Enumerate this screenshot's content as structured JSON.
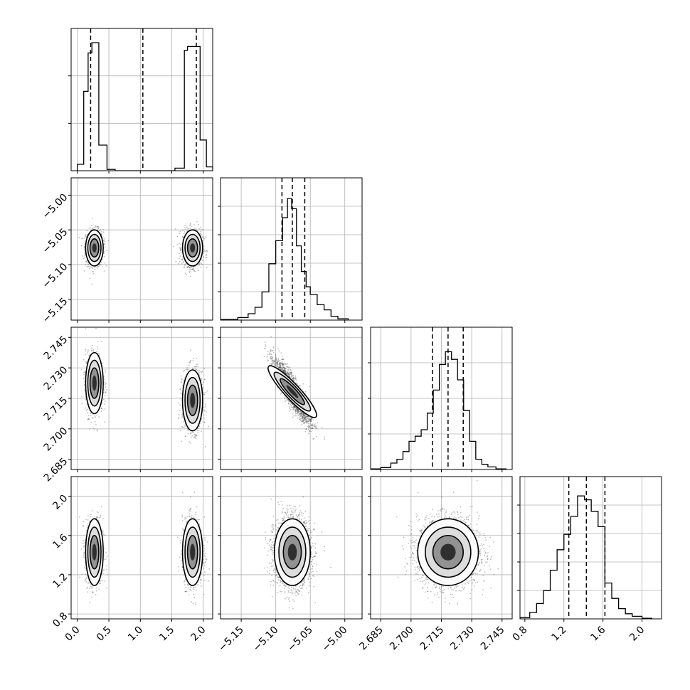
{
  "chart_data": {
    "type": "corner",
    "grid": true,
    "parameters": [
      {
        "range": [
          -0.1,
          2.15
        ],
        "ticks": [
          "0.0",
          "0.5",
          "1.0",
          "1.5",
          "2.0"
        ],
        "tick_values": [
          0,
          0.5,
          1.0,
          1.5,
          2.0
        ],
        "quantiles": [
          0.21,
          1.04,
          1.89
        ],
        "histogram": {
          "bins": [
            [
              0.0,
              0.1,
              0.05
            ],
            [
              0.1,
              0.17,
              0.62
            ],
            [
              0.17,
              0.23,
              0.92
            ],
            [
              0.23,
              0.34,
              1.0
            ],
            [
              0.34,
              0.47,
              0.2
            ],
            [
              0.47,
              0.6,
              0.01
            ],
            [
              1.55,
              1.7,
              0.02
            ],
            [
              1.7,
              1.75,
              0.94
            ],
            [
              1.75,
              1.95,
              0.97
            ],
            [
              1.95,
              2.05,
              0.24
            ],
            [
              2.05,
              2.15,
              0.03
            ]
          ],
          "y_ticks": [
            0.0,
            0.5,
            1.0
          ]
        },
        "blobs": [
          {
            "cx": 0.27,
            "sx": 0.07,
            "n": 900
          },
          {
            "cx": 1.83,
            "sx": 0.08,
            "n": 1000
          }
        ]
      },
      {
        "range": [
          -5.18,
          -4.975
        ],
        "ticks": [
          "-5.15",
          "-5.10",
          "-5.05",
          "-5.00"
        ],
        "tick_values": [
          -5.15,
          -5.1,
          -5.05,
          -5.0
        ],
        "quantiles": [
          -5.091,
          -5.076,
          -5.058
        ],
        "histogram": {
          "bins": [
            [
              -5.18,
              -5.155,
              0.005
            ],
            [
              -5.155,
              -5.14,
              0.02
            ],
            [
              -5.14,
              -5.13,
              0.05
            ],
            [
              -5.13,
              -5.12,
              0.1
            ],
            [
              -5.12,
              -5.11,
              0.22
            ],
            [
              -5.11,
              -5.1,
              0.44
            ],
            [
              -5.1,
              -5.09,
              0.62
            ],
            [
              -5.09,
              -5.083,
              0.8
            ],
            [
              -5.083,
              -5.077,
              0.95
            ],
            [
              -5.077,
              -5.07,
              0.87
            ],
            [
              -5.07,
              -5.063,
              0.58
            ],
            [
              -5.063,
              -5.056,
              0.38
            ],
            [
              -5.056,
              -5.05,
              0.26
            ],
            [
              -5.05,
              -5.04,
              0.2
            ],
            [
              -5.04,
              -5.03,
              0.12
            ],
            [
              -5.03,
              -5.02,
              0.08
            ],
            [
              -5.02,
              -5.01,
              0.03
            ],
            [
              -5.01,
              -4.995,
              0.01
            ]
          ],
          "y_ticks": [
            0.0,
            0.2,
            0.4,
            0.6,
            0.8
          ]
        }
      },
      {
        "range": [
          2.68,
          2.75
        ],
        "ticks": [
          "2.685",
          "2.700",
          "2.715",
          "2.730",
          "2.745"
        ],
        "tick_values": [
          2.685,
          2.7,
          2.715,
          2.73,
          2.745
        ],
        "quantiles": [
          2.7106,
          2.7183,
          2.7258
        ],
        "histogram": {
          "bins": [
            [
              2.68,
              2.685,
              0.005
            ],
            [
              2.685,
              2.69,
              0.015
            ],
            [
              2.69,
              2.693,
              0.05
            ],
            [
              2.693,
              2.696,
              0.08
            ],
            [
              2.696,
              2.699,
              0.14
            ],
            [
              2.699,
              2.702,
              0.22
            ],
            [
              2.702,
              2.705,
              0.26
            ],
            [
              2.705,
              2.708,
              0.31
            ],
            [
              2.708,
              2.711,
              0.44
            ],
            [
              2.711,
              2.714,
              0.62
            ],
            [
              2.714,
              2.717,
              0.82
            ],
            [
              2.717,
              2.72,
              0.92
            ],
            [
              2.72,
              2.723,
              0.86
            ],
            [
              2.723,
              2.726,
              0.7
            ],
            [
              2.726,
              2.729,
              0.46
            ],
            [
              2.729,
              2.732,
              0.22
            ],
            [
              2.732,
              2.735,
              0.08
            ],
            [
              2.735,
              2.738,
              0.04
            ],
            [
              2.738,
              2.742,
              0.02
            ],
            [
              2.742,
              2.747,
              0.005
            ]
          ],
          "y_ticks": [
            0.0,
            0.25,
            0.5,
            0.75
          ]
        }
      },
      {
        "range": [
          0.75,
          2.2
        ],
        "ticks": [
          "0.8",
          "1.2",
          "1.6",
          "2.0"
        ],
        "tick_values": [
          0.8,
          1.2,
          1.6,
          2.0
        ],
        "quantiles": [
          1.25,
          1.43,
          1.62
        ],
        "histogram": {
          "bins": [
            [
              0.75,
              0.85,
              0.01
            ],
            [
              0.85,
              0.92,
              0.05
            ],
            [
              0.92,
              0.99,
              0.12
            ],
            [
              0.99,
              1.06,
              0.22
            ],
            [
              1.06,
              1.13,
              0.38
            ],
            [
              1.13,
              1.2,
              0.54
            ],
            [
              1.2,
              1.27,
              0.66
            ],
            [
              1.27,
              1.34,
              0.8
            ],
            [
              1.34,
              1.41,
              0.96
            ],
            [
              1.41,
              1.48,
              0.93
            ],
            [
              1.48,
              1.55,
              0.84
            ],
            [
              1.55,
              1.62,
              0.72
            ],
            [
              1.62,
              1.69,
              0.28
            ],
            [
              1.69,
              1.76,
              0.16
            ],
            [
              1.76,
              1.83,
              0.08
            ],
            [
              1.83,
              1.9,
              0.04
            ],
            [
              1.9,
              2.0,
              0.02
            ],
            [
              2.0,
              2.1,
              0.005
            ]
          ],
          "y_ticks": [
            0.0,
            0.2,
            0.4,
            0.6,
            0.8
          ]
        }
      }
    ]
  }
}
